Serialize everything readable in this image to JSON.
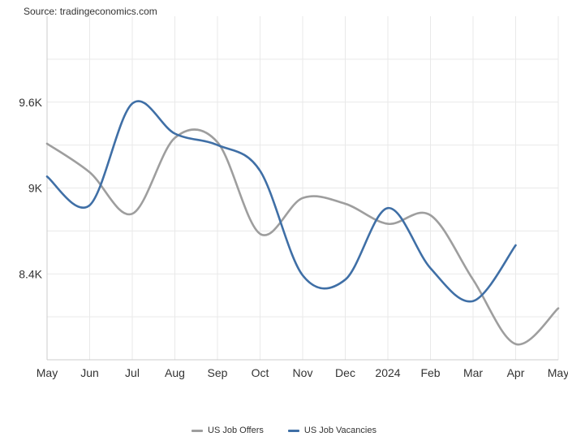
{
  "source": "Source: tradingeconomics.com",
  "chart_data": {
    "type": "line",
    "title": "",
    "xlabel": "",
    "ylabel": "",
    "categories": [
      "May",
      "Jun",
      "Jul",
      "Aug",
      "Sep",
      "Oct",
      "Nov",
      "Dec",
      "2024",
      "Feb",
      "Mar",
      "Apr",
      "May"
    ],
    "y_ticks": [
      {
        "value": 8400,
        "label": "8.4K"
      },
      {
        "value": 9000,
        "label": "9K"
      },
      {
        "value": 9600,
        "label": "9.6K"
      }
    ],
    "ylim": [
      7800,
      10200
    ],
    "grid": true,
    "legend_position": "bottom",
    "series": [
      {
        "name": "US Job Offers",
        "color": "#9e9e9e",
        "values": [
          9310,
          9110,
          8820,
          9350,
          9320,
          8680,
          8930,
          8890,
          8750,
          8810,
          8360,
          7910,
          8160
        ]
      },
      {
        "name": "US Job Vacancies",
        "color": "#3f6fa6",
        "values": [
          9080,
          8880,
          9590,
          9380,
          9300,
          9120,
          8390,
          8360,
          8860,
          8440,
          8210,
          8600,
          null
        ]
      }
    ]
  }
}
